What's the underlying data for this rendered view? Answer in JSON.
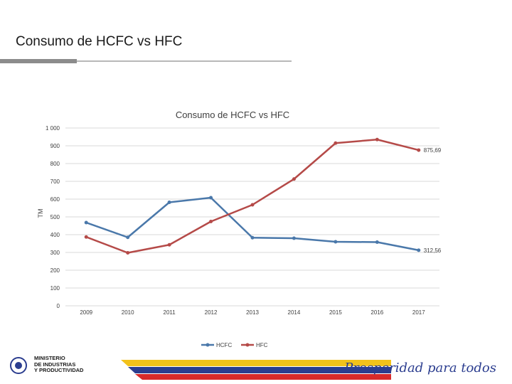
{
  "slide": {
    "title": "Consumo de HCFC vs HFC"
  },
  "footer": {
    "ministry_line1": "MINISTERIO",
    "ministry_line2": "DE INDUSTRIAS",
    "ministry_line3": "Y PRODUCTIVIDAD",
    "slogan": "Prosperidad para todos",
    "colors": {
      "yellow": "#f2c21b",
      "blue": "#2b3d8f",
      "red": "#d72a2a"
    }
  },
  "chart_data": {
    "type": "line",
    "title": "Consumo de HCFC vs HFC",
    "ylabel": "TM",
    "xlabel": "",
    "ylim": [
      0,
      1000
    ],
    "yticks": [
      0,
      100,
      200,
      300,
      400,
      500,
      600,
      700,
      800,
      900,
      1000
    ],
    "ytick_labels": [
      "0",
      "100",
      "200",
      "300",
      "400",
      "500",
      "600",
      "700",
      "800",
      "900",
      "1 000"
    ],
    "categories": [
      "2009",
      "2010",
      "2011",
      "2012",
      "2013",
      "2014",
      "2015",
      "2016",
      "2017"
    ],
    "grid": true,
    "legend_position": "bottom",
    "series": [
      {
        "name": "HCFC",
        "color": "#4a78aa",
        "values": [
          468,
          385,
          582,
          608,
          383,
          380,
          360,
          358,
          312.56
        ],
        "end_label": "312,56"
      },
      {
        "name": "HFC",
        "color": "#b54a48",
        "values": [
          387,
          298,
          343,
          474,
          568,
          713,
          915,
          935,
          875.69
        ],
        "end_label": "875,69"
      }
    ]
  }
}
